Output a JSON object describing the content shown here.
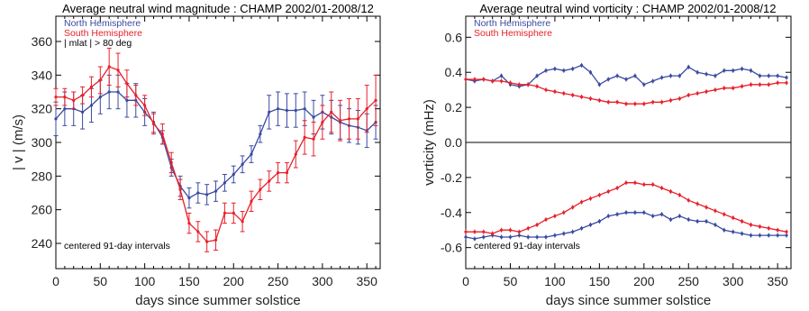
{
  "colors": {
    "north": "#3a4aa0",
    "south": "#e8202a",
    "axis": "#000000"
  },
  "chart_data": [
    {
      "type": "line",
      "title": "Average neutral wind magnitude :  CHAMP 2002/01-2008/12",
      "xlabel": "days since summer solstice",
      "ylabel": "| v | (m/s)",
      "xlim": [
        0,
        365
      ],
      "ylim": [
        225,
        375
      ],
      "xticks": [
        0,
        50,
        100,
        150,
        200,
        250,
        300,
        350
      ],
      "yticks": [
        240,
        260,
        280,
        300,
        320,
        340,
        360
      ],
      "annotations": [
        "| mlat | > 80 deg",
        "centered 91-day intervals"
      ],
      "legend_placement": "top-left",
      "error_bars": true,
      "series": [
        {
          "name": "North Hemisphere",
          "color": "#3a4aa0",
          "x": [
            0,
            10,
            20,
            30,
            40,
            50,
            60,
            70,
            80,
            90,
            100,
            110,
            120,
            130,
            140,
            150,
            160,
            170,
            180,
            190,
            200,
            210,
            220,
            230,
            240,
            250,
            260,
            270,
            280,
            290,
            300,
            310,
            320,
            330,
            340,
            350,
            360
          ],
          "y": [
            314,
            320,
            320,
            318,
            322,
            327,
            330,
            330,
            325,
            325,
            318,
            312,
            303,
            285,
            274,
            267,
            270,
            269,
            271,
            276,
            281,
            287,
            293,
            305,
            318,
            320,
            319,
            319,
            320,
            315,
            318,
            315,
            312,
            310,
            309,
            307,
            312
          ],
          "err": [
            10,
            10,
            10,
            10,
            10,
            10,
            10,
            10,
            10,
            10,
            8,
            6,
            4,
            5,
            6,
            6,
            6,
            6,
            6,
            5,
            5,
            5,
            5,
            5,
            10,
            10,
            10,
            10,
            10,
            10,
            10,
            10,
            10,
            10,
            10,
            10,
            10
          ]
        },
        {
          "name": "South Hemisphere",
          "color": "#e8202a",
          "x": [
            0,
            10,
            20,
            30,
            40,
            50,
            60,
            70,
            80,
            90,
            100,
            110,
            120,
            130,
            140,
            150,
            160,
            170,
            180,
            190,
            200,
            210,
            220,
            230,
            240,
            250,
            260,
            270,
            280,
            290,
            300,
            310,
            320,
            330,
            340,
            350,
            360
          ],
          "y": [
            327,
            327,
            325,
            328,
            333,
            337,
            345,
            343,
            335,
            328,
            322,
            311,
            305,
            288,
            272,
            252,
            247,
            241,
            242,
            258,
            258,
            253,
            265,
            272,
            277,
            282,
            282,
            293,
            303,
            302,
            312,
            318,
            313,
            314,
            314,
            320,
            325
          ],
          "err": [
            5,
            5,
            5,
            5,
            6,
            8,
            11,
            10,
            8,
            6,
            6,
            6,
            6,
            6,
            6,
            6,
            6,
            6,
            6,
            6,
            6,
            6,
            6,
            6,
            6,
            6,
            6,
            8,
            10,
            10,
            10,
            12,
            12,
            12,
            12,
            14,
            15
          ]
        }
      ]
    },
    {
      "type": "line",
      "title": "Average neutral wind vorticity :  CHAMP 2002/01-2008/12",
      "xlabel": "days since summer solstice",
      "ylabel": "vorticity (mHz)",
      "xlim": [
        0,
        365
      ],
      "ylim": [
        -0.72,
        0.72
      ],
      "xticks": [
        0,
        50,
        100,
        150,
        200,
        250,
        300,
        350
      ],
      "yticks": [
        -0.6,
        -0.4,
        -0.2,
        0.0,
        0.2,
        0.4,
        0.6
      ],
      "ytick_labels": [
        "-0.6",
        "-0.4",
        "-0.2",
        "0.0",
        "0.2",
        "0.4",
        "0.6"
      ],
      "annotations": [
        "centered 91-day intervals"
      ],
      "legend_placement": "top-left",
      "zero_line": true,
      "series": [
        {
          "name": "North Hemisphere",
          "color": "#3a4aa0",
          "x": [
            0,
            10,
            20,
            30,
            40,
            50,
            60,
            70,
            80,
            90,
            100,
            110,
            120,
            130,
            140,
            150,
            160,
            170,
            180,
            190,
            200,
            210,
            220,
            230,
            240,
            250,
            260,
            270,
            280,
            290,
            300,
            310,
            320,
            330,
            340,
            350,
            360
          ],
          "y": [
            0.36,
            0.35,
            0.36,
            0.35,
            0.38,
            0.33,
            0.32,
            0.33,
            0.38,
            0.41,
            0.42,
            0.41,
            0.42,
            0.44,
            0.4,
            0.33,
            0.36,
            0.38,
            0.36,
            0.38,
            0.33,
            0.35,
            0.37,
            0.38,
            0.38,
            0.43,
            0.4,
            0.39,
            0.38,
            0.41,
            0.41,
            0.42,
            0.41,
            0.38,
            0.38,
            0.38,
            0.37
          ],
          "name_repeat": "",
          "y2": [
            -0.54,
            -0.55,
            -0.54,
            -0.53,
            -0.54,
            -0.54,
            -0.53,
            -0.54,
            -0.54,
            -0.54,
            -0.53,
            -0.52,
            -0.51,
            -0.49,
            -0.47,
            -0.45,
            -0.42,
            -0.41,
            -0.4,
            -0.4,
            -0.4,
            -0.42,
            -0.41,
            -0.44,
            -0.42,
            -0.44,
            -0.45,
            -0.45,
            -0.47,
            -0.5,
            -0.51,
            -0.52,
            -0.53,
            -0.53,
            -0.53,
            -0.53,
            -0.53
          ]
        },
        {
          "name": "South Hemisphere",
          "color": "#e8202a",
          "x": [
            0,
            10,
            20,
            30,
            40,
            50,
            60,
            70,
            80,
            90,
            100,
            110,
            120,
            130,
            140,
            150,
            160,
            170,
            180,
            190,
            200,
            210,
            220,
            230,
            240,
            250,
            260,
            270,
            280,
            290,
            300,
            310,
            320,
            330,
            340,
            350,
            360
          ],
          "y": [
            0.36,
            0.36,
            0.36,
            0.35,
            0.35,
            0.34,
            0.33,
            0.33,
            0.32,
            0.3,
            0.29,
            0.28,
            0.27,
            0.26,
            0.25,
            0.24,
            0.23,
            0.23,
            0.22,
            0.22,
            0.22,
            0.23,
            0.23,
            0.24,
            0.25,
            0.27,
            0.28,
            0.29,
            0.3,
            0.31,
            0.31,
            0.32,
            0.33,
            0.33,
            0.33,
            0.34,
            0.34
          ],
          "y2": [
            -0.51,
            -0.51,
            -0.51,
            -0.52,
            -0.5,
            -0.5,
            -0.51,
            -0.49,
            -0.47,
            -0.44,
            -0.42,
            -0.4,
            -0.37,
            -0.34,
            -0.32,
            -0.3,
            -0.28,
            -0.26,
            -0.23,
            -0.23,
            -0.24,
            -0.24,
            -0.26,
            -0.28,
            -0.3,
            -0.33,
            -0.35,
            -0.37,
            -0.39,
            -0.41,
            -0.43,
            -0.45,
            -0.47,
            -0.48,
            -0.49,
            -0.5,
            -0.51
          ]
        }
      ]
    }
  ]
}
